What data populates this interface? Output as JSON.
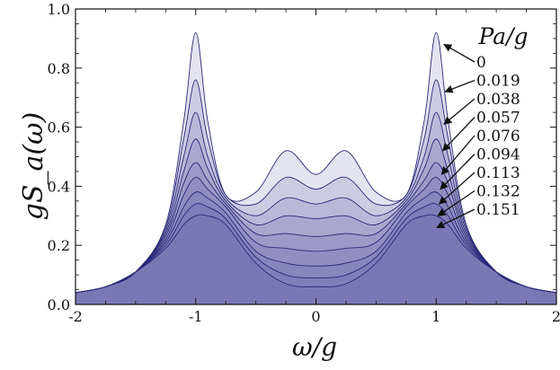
{
  "chart_data": {
    "type": "area",
    "xlabel": "ω/g",
    "ylabel": "gS_a(ω)",
    "xlim": [
      -2,
      2
    ],
    "ylim": [
      0,
      1.0
    ],
    "x_ticks": [
      "-2",
      "-1",
      "0",
      "1",
      "2"
    ],
    "y_ticks": [
      "0.0",
      "0.2",
      "0.4",
      "0.6",
      "0.8",
      "1.0"
    ],
    "legend": {
      "title": "Pa/g",
      "placement": "top-right"
    },
    "color": "#5c5aa8",
    "x": [
      -2.0,
      -1.75,
      -1.5,
      -1.25,
      -1.1,
      -1.0,
      -0.9,
      -0.75,
      -0.5,
      -0.25,
      0.0,
      0.25,
      0.5,
      0.75,
      0.9,
      1.0,
      1.1,
      1.25,
      1.5,
      1.75,
      2.0
    ],
    "series": [
      {
        "name": "0",
        "values": [
          0.04,
          0.06,
          0.11,
          0.27,
          0.62,
          0.92,
          0.62,
          0.37,
          0.38,
          0.52,
          0.44,
          0.52,
          0.38,
          0.37,
          0.62,
          0.92,
          0.62,
          0.27,
          0.11,
          0.06,
          0.04
        ]
      },
      {
        "name": "0.019",
        "values": [
          0.04,
          0.06,
          0.11,
          0.26,
          0.56,
          0.76,
          0.56,
          0.37,
          0.34,
          0.43,
          0.39,
          0.43,
          0.34,
          0.37,
          0.56,
          0.76,
          0.56,
          0.26,
          0.11,
          0.06,
          0.04
        ]
      },
      {
        "name": "0.038",
        "values": [
          0.04,
          0.06,
          0.11,
          0.25,
          0.5,
          0.65,
          0.5,
          0.36,
          0.3,
          0.36,
          0.34,
          0.36,
          0.3,
          0.36,
          0.5,
          0.65,
          0.5,
          0.25,
          0.11,
          0.06,
          0.04
        ]
      },
      {
        "name": "0.057",
        "values": [
          0.04,
          0.06,
          0.11,
          0.24,
          0.45,
          0.56,
          0.46,
          0.35,
          0.27,
          0.3,
          0.29,
          0.3,
          0.27,
          0.35,
          0.46,
          0.56,
          0.45,
          0.24,
          0.11,
          0.06,
          0.04
        ]
      },
      {
        "name": "0.076",
        "values": [
          0.04,
          0.06,
          0.11,
          0.23,
          0.41,
          0.48,
          0.42,
          0.34,
          0.24,
          0.24,
          0.23,
          0.24,
          0.24,
          0.34,
          0.42,
          0.48,
          0.41,
          0.23,
          0.11,
          0.06,
          0.04
        ]
      },
      {
        "name": "0.094",
        "values": [
          0.04,
          0.06,
          0.11,
          0.22,
          0.37,
          0.43,
          0.39,
          0.33,
          0.21,
          0.19,
          0.18,
          0.19,
          0.21,
          0.33,
          0.39,
          0.43,
          0.37,
          0.22,
          0.11,
          0.06,
          0.04
        ]
      },
      {
        "name": "0.113",
        "values": [
          0.04,
          0.06,
          0.11,
          0.21,
          0.33,
          0.38,
          0.36,
          0.31,
          0.18,
          0.14,
          0.13,
          0.14,
          0.18,
          0.31,
          0.36,
          0.38,
          0.33,
          0.21,
          0.11,
          0.06,
          0.04
        ]
      },
      {
        "name": "0.132",
        "values": [
          0.04,
          0.06,
          0.11,
          0.2,
          0.3,
          0.34,
          0.33,
          0.29,
          0.16,
          0.1,
          0.09,
          0.1,
          0.16,
          0.29,
          0.33,
          0.34,
          0.3,
          0.2,
          0.11,
          0.06,
          0.04
        ]
      },
      {
        "name": "0.151",
        "values": [
          0.04,
          0.06,
          0.11,
          0.19,
          0.27,
          0.3,
          0.3,
          0.27,
          0.14,
          0.07,
          0.06,
          0.07,
          0.14,
          0.27,
          0.3,
          0.3,
          0.27,
          0.19,
          0.11,
          0.06,
          0.04
        ]
      }
    ]
  }
}
